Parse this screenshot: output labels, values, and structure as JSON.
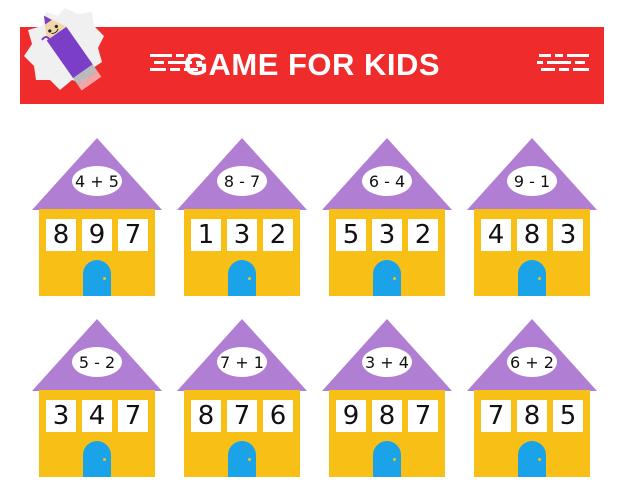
{
  "banner": {
    "title": "GAME FOR KIDS"
  },
  "colors": {
    "banner": "#ef2b2b",
    "roof": "#b07fd4",
    "wall": "#f8bf16",
    "door": "#1aa3e8"
  },
  "houses": [
    {
      "expression": "4 + 5",
      "digits": [
        "8",
        "9",
        "7"
      ]
    },
    {
      "expression": "8 - 7",
      "digits": [
        "1",
        "3",
        "2"
      ]
    },
    {
      "expression": "6 - 4",
      "digits": [
        "5",
        "3",
        "2"
      ]
    },
    {
      "expression": "9 - 1",
      "digits": [
        "4",
        "8",
        "3"
      ]
    },
    {
      "expression": "5 - 2",
      "digits": [
        "3",
        "4",
        "7"
      ]
    },
    {
      "expression": "7 + 1",
      "digits": [
        "8",
        "7",
        "6"
      ]
    },
    {
      "expression": "3 + 4",
      "digits": [
        "9",
        "8",
        "7"
      ]
    },
    {
      "expression": "6 + 2",
      "digits": [
        "7",
        "8",
        "5"
      ]
    }
  ],
  "icons": [
    "pencil-mascot-icon",
    "door-icon"
  ]
}
